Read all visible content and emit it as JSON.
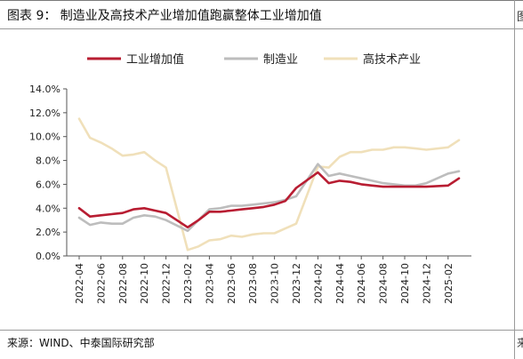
{
  "title": "图表 9：  制造业及高技术产业增加值跑赢整体工业增加值",
  "source": "来源：WIND、中泰国际研究部",
  "right_edge_glyphs": {
    "top": "图",
    "bottom": "来"
  },
  "chart_data": {
    "type": "line",
    "title": "",
    "xlabel": "",
    "ylabel": "",
    "ylim": [
      0,
      14
    ],
    "y_ticks": [
      "0.0%",
      "2.0%",
      "4.0%",
      "6.0%",
      "8.0%",
      "10.0%",
      "12.0%",
      "14.0%"
    ],
    "y_tick_values": [
      0,
      2,
      4,
      6,
      8,
      10,
      12,
      14
    ],
    "x": [
      "2022-04",
      "2022-05",
      "2022-06",
      "2022-07",
      "2022-08",
      "2022-09",
      "2022-10",
      "2022-11",
      "2022-12",
      "2023-02",
      "2023-03",
      "2023-04",
      "2023-05",
      "2023-06",
      "2023-07",
      "2023-08",
      "2023-09",
      "2023-10",
      "2023-11",
      "2023-12",
      "2024-02",
      "2024-03",
      "2024-04",
      "2024-05",
      "2024-06",
      "2024-07",
      "2024-08",
      "2024-09",
      "2024-10",
      "2024-11",
      "2024-12",
      "2025-02",
      "2025-03"
    ],
    "x_tick_labels": [
      "2022-04",
      "2022-06",
      "2022-08",
      "2022-10",
      "2022-12",
      "2023-02",
      "2023-04",
      "2023-06",
      "2023-08",
      "2023-10",
      "2023-12",
      "2024-02",
      "2024-04",
      "2024-06",
      "2024-08",
      "2024-10",
      "2024-12",
      "2025-02"
    ],
    "grid": false,
    "legend_position": "top",
    "series": [
      {
        "name": "工业增加值",
        "color": "#b81d32",
        "values": [
          4.0,
          3.3,
          3.4,
          3.5,
          3.6,
          3.9,
          4.0,
          3.8,
          3.6,
          2.4,
          3.0,
          3.7,
          3.7,
          3.8,
          3.9,
          4.0,
          4.1,
          4.3,
          4.6,
          5.7,
          7.0,
          6.1,
          6.3,
          6.2,
          6.0,
          5.9,
          5.8,
          5.8,
          5.8,
          5.8,
          5.8,
          5.9,
          6.5
        ]
      },
      {
        "name": "制造业",
        "color": "#bdbdbd",
        "values": [
          3.2,
          2.6,
          2.8,
          2.7,
          2.7,
          3.2,
          3.4,
          3.3,
          3.0,
          2.1,
          3.0,
          3.9,
          4.0,
          4.2,
          4.2,
          4.3,
          4.4,
          4.5,
          4.7,
          5.0,
          7.7,
          6.7,
          6.9,
          6.7,
          6.5,
          6.3,
          6.1,
          6.0,
          5.9,
          5.9,
          6.1,
          6.9,
          7.1
        ]
      },
      {
        "name": "高技术产业",
        "color": "#f0e0ba",
        "values": [
          11.5,
          9.9,
          9.5,
          9.0,
          8.4,
          8.5,
          8.7,
          8.0,
          7.4,
          0.5,
          0.8,
          1.3,
          1.4,
          1.7,
          1.6,
          1.8,
          1.9,
          1.9,
          2.3,
          2.7,
          7.5,
          7.4,
          8.3,
          8.7,
          8.7,
          8.9,
          8.9,
          9.1,
          9.1,
          9.0,
          8.9,
          9.1,
          9.7
        ]
      }
    ]
  }
}
